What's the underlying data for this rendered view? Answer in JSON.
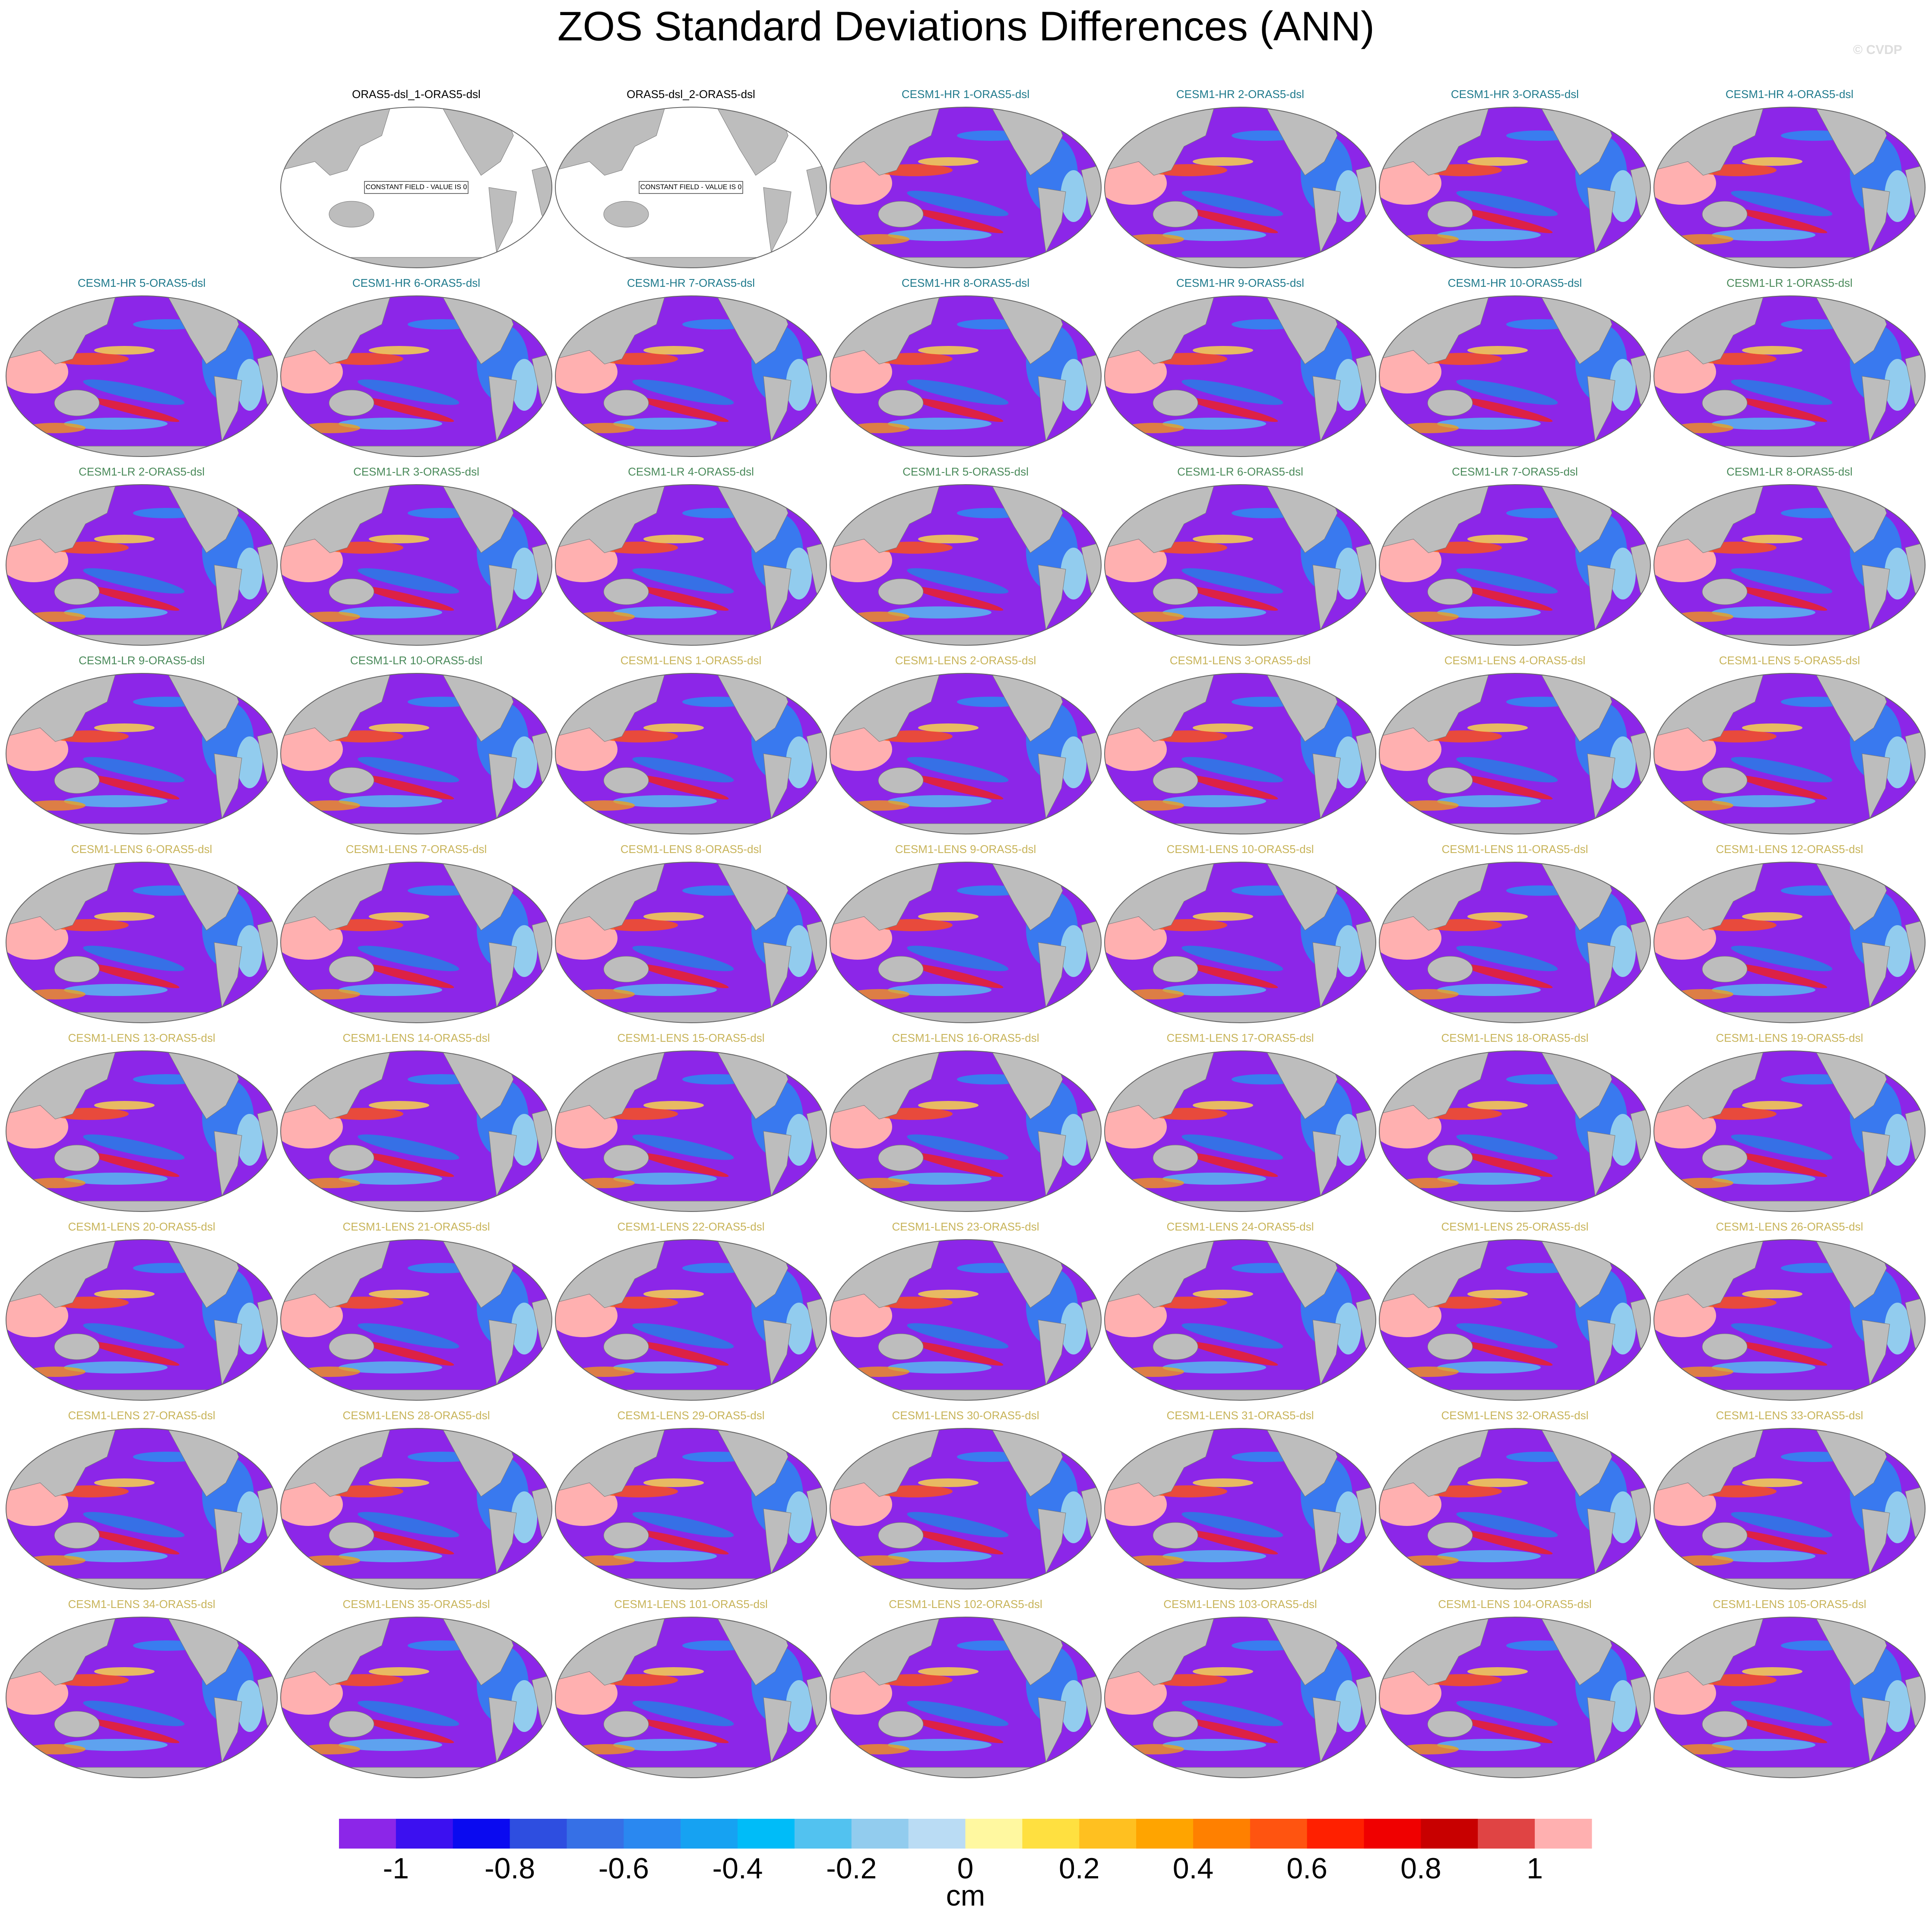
{
  "chart_data": {
    "type": "map-panel",
    "title": "ZOS Standard Deviations Differences (ANN)",
    "watermark": "© CVDP",
    "panels": [
      {
        "title": "ORAS5-dsl_1-ORAS5-dsl",
        "color": "#000000",
        "note": "CONSTANT FIELD - VALUE IS 0"
      },
      {
        "title": "ORAS5-dsl_2-ORAS5-dsl",
        "color": "#000000",
        "note": "CONSTANT FIELD - VALUE IS 0"
      },
      {
        "title": "CESM1-HR 1-ORAS5-dsl",
        "color": "#1f7a8c"
      },
      {
        "title": "CESM1-HR 2-ORAS5-dsl",
        "color": "#1f7a8c"
      },
      {
        "title": "CESM1-HR 3-ORAS5-dsl",
        "color": "#1f7a8c"
      },
      {
        "title": "CESM1-HR 4-ORAS5-dsl",
        "color": "#1f7a8c"
      },
      {
        "title": "CESM1-HR 5-ORAS5-dsl",
        "color": "#1f7a8c"
      },
      {
        "title": "CESM1-HR 6-ORAS5-dsl",
        "color": "#1f7a8c"
      },
      {
        "title": "CESM1-HR 7-ORAS5-dsl",
        "color": "#1f7a8c"
      },
      {
        "title": "CESM1-HR 8-ORAS5-dsl",
        "color": "#1f7a8c"
      },
      {
        "title": "CESM1-HR 9-ORAS5-dsl",
        "color": "#1f7a8c"
      },
      {
        "title": "CESM1-HR 10-ORAS5-dsl",
        "color": "#1f7a8c"
      },
      {
        "title": "CESM1-LR 1-ORAS5-dsl",
        "color": "#4a8a5a"
      },
      {
        "title": "CESM1-LR 2-ORAS5-dsl",
        "color": "#4a8a5a"
      },
      {
        "title": "CESM1-LR 3-ORAS5-dsl",
        "color": "#4a8a5a"
      },
      {
        "title": "CESM1-LR 4-ORAS5-dsl",
        "color": "#4a8a5a"
      },
      {
        "title": "CESM1-LR 5-ORAS5-dsl",
        "color": "#4a8a5a"
      },
      {
        "title": "CESM1-LR 6-ORAS5-dsl",
        "color": "#4a8a5a"
      },
      {
        "title": "CESM1-LR 7-ORAS5-dsl",
        "color": "#4a8a5a"
      },
      {
        "title": "CESM1-LR 8-ORAS5-dsl",
        "color": "#4a8a5a"
      },
      {
        "title": "CESM1-LR 9-ORAS5-dsl",
        "color": "#4a8a5a"
      },
      {
        "title": "CESM1-LR 10-ORAS5-dsl",
        "color": "#4a8a5a"
      },
      {
        "title": "CESM1-LENS 1-ORAS5-dsl",
        "color": "#c8b45a"
      },
      {
        "title": "CESM1-LENS 2-ORAS5-dsl",
        "color": "#c8b45a"
      },
      {
        "title": "CESM1-LENS 3-ORAS5-dsl",
        "color": "#c8b45a"
      },
      {
        "title": "CESM1-LENS 4-ORAS5-dsl",
        "color": "#c8b45a"
      },
      {
        "title": "CESM1-LENS 5-ORAS5-dsl",
        "color": "#c8b45a"
      },
      {
        "title": "CESM1-LENS 6-ORAS5-dsl",
        "color": "#c8b45a"
      },
      {
        "title": "CESM1-LENS 7-ORAS5-dsl",
        "color": "#c8b45a"
      },
      {
        "title": "CESM1-LENS 8-ORAS5-dsl",
        "color": "#c8b45a"
      },
      {
        "title": "CESM1-LENS 9-ORAS5-dsl",
        "color": "#c8b45a"
      },
      {
        "title": "CESM1-LENS 10-ORAS5-dsl",
        "color": "#c8b45a"
      },
      {
        "title": "CESM1-LENS 11-ORAS5-dsl",
        "color": "#c8b45a"
      },
      {
        "title": "CESM1-LENS 12-ORAS5-dsl",
        "color": "#c8b45a"
      },
      {
        "title": "CESM1-LENS 13-ORAS5-dsl",
        "color": "#c8b45a"
      },
      {
        "title": "CESM1-LENS 14-ORAS5-dsl",
        "color": "#c8b45a"
      },
      {
        "title": "CESM1-LENS 15-ORAS5-dsl",
        "color": "#c8b45a"
      },
      {
        "title": "CESM1-LENS 16-ORAS5-dsl",
        "color": "#c8b45a"
      },
      {
        "title": "CESM1-LENS 17-ORAS5-dsl",
        "color": "#c8b45a"
      },
      {
        "title": "CESM1-LENS 18-ORAS5-dsl",
        "color": "#c8b45a"
      },
      {
        "title": "CESM1-LENS 19-ORAS5-dsl",
        "color": "#c8b45a"
      },
      {
        "title": "CESM1-LENS 20-ORAS5-dsl",
        "color": "#c8b45a"
      },
      {
        "title": "CESM1-LENS 21-ORAS5-dsl",
        "color": "#c8b45a"
      },
      {
        "title": "CESM1-LENS 22-ORAS5-dsl",
        "color": "#c8b45a"
      },
      {
        "title": "CESM1-LENS 23-ORAS5-dsl",
        "color": "#c8b45a"
      },
      {
        "title": "CESM1-LENS 24-ORAS5-dsl",
        "color": "#c8b45a"
      },
      {
        "title": "CESM1-LENS 25-ORAS5-dsl",
        "color": "#c8b45a"
      },
      {
        "title": "CESM1-LENS 26-ORAS5-dsl",
        "color": "#c8b45a"
      },
      {
        "title": "CESM1-LENS 27-ORAS5-dsl",
        "color": "#c8b45a"
      },
      {
        "title": "CESM1-LENS 28-ORAS5-dsl",
        "color": "#c8b45a"
      },
      {
        "title": "CESM1-LENS 29-ORAS5-dsl",
        "color": "#c8b45a"
      },
      {
        "title": "CESM1-LENS 30-ORAS5-dsl",
        "color": "#c8b45a"
      },
      {
        "title": "CESM1-LENS 31-ORAS5-dsl",
        "color": "#c8b45a"
      },
      {
        "title": "CESM1-LENS 32-ORAS5-dsl",
        "color": "#c8b45a"
      },
      {
        "title": "CESM1-LENS 33-ORAS5-dsl",
        "color": "#c8b45a"
      },
      {
        "title": "CESM1-LENS 34-ORAS5-dsl",
        "color": "#c8b45a"
      },
      {
        "title": "CESM1-LENS 35-ORAS5-dsl",
        "color": "#c8b45a"
      },
      {
        "title": "CESM1-LENS 101-ORAS5-dsl",
        "color": "#c8b45a"
      },
      {
        "title": "CESM1-LENS 102-ORAS5-dsl",
        "color": "#c8b45a"
      },
      {
        "title": "CESM1-LENS 103-ORAS5-dsl",
        "color": "#c8b45a"
      },
      {
        "title": "CESM1-LENS 104-ORAS5-dsl",
        "color": "#c8b45a"
      },
      {
        "title": "CESM1-LENS 105-ORAS5-dsl",
        "color": "#c8b45a"
      }
    ],
    "colorbar": {
      "label": "cm",
      "clim": [
        -1.1,
        1.1
      ],
      "ticks": [
        -1,
        -0.8,
        -0.6,
        -0.4,
        -0.2,
        0,
        0.2,
        0.4,
        0.6,
        0.8,
        1
      ],
      "colors": [
        "#8c26e8",
        "#3c10f0",
        "#0a0af0",
        "#2e4ee0",
        "#3670e6",
        "#2a88f0",
        "#16a2f2",
        "#00bcf8",
        "#52c2f0",
        "#92ccee",
        "#badcf4",
        "#fff8a0",
        "#ffe040",
        "#ffc020",
        "#ffa400",
        "#ff8000",
        "#ff5410",
        "#ff2000",
        "#f00000",
        "#c80000",
        "#e04444",
        "#ffb0b0"
      ]
    }
  }
}
